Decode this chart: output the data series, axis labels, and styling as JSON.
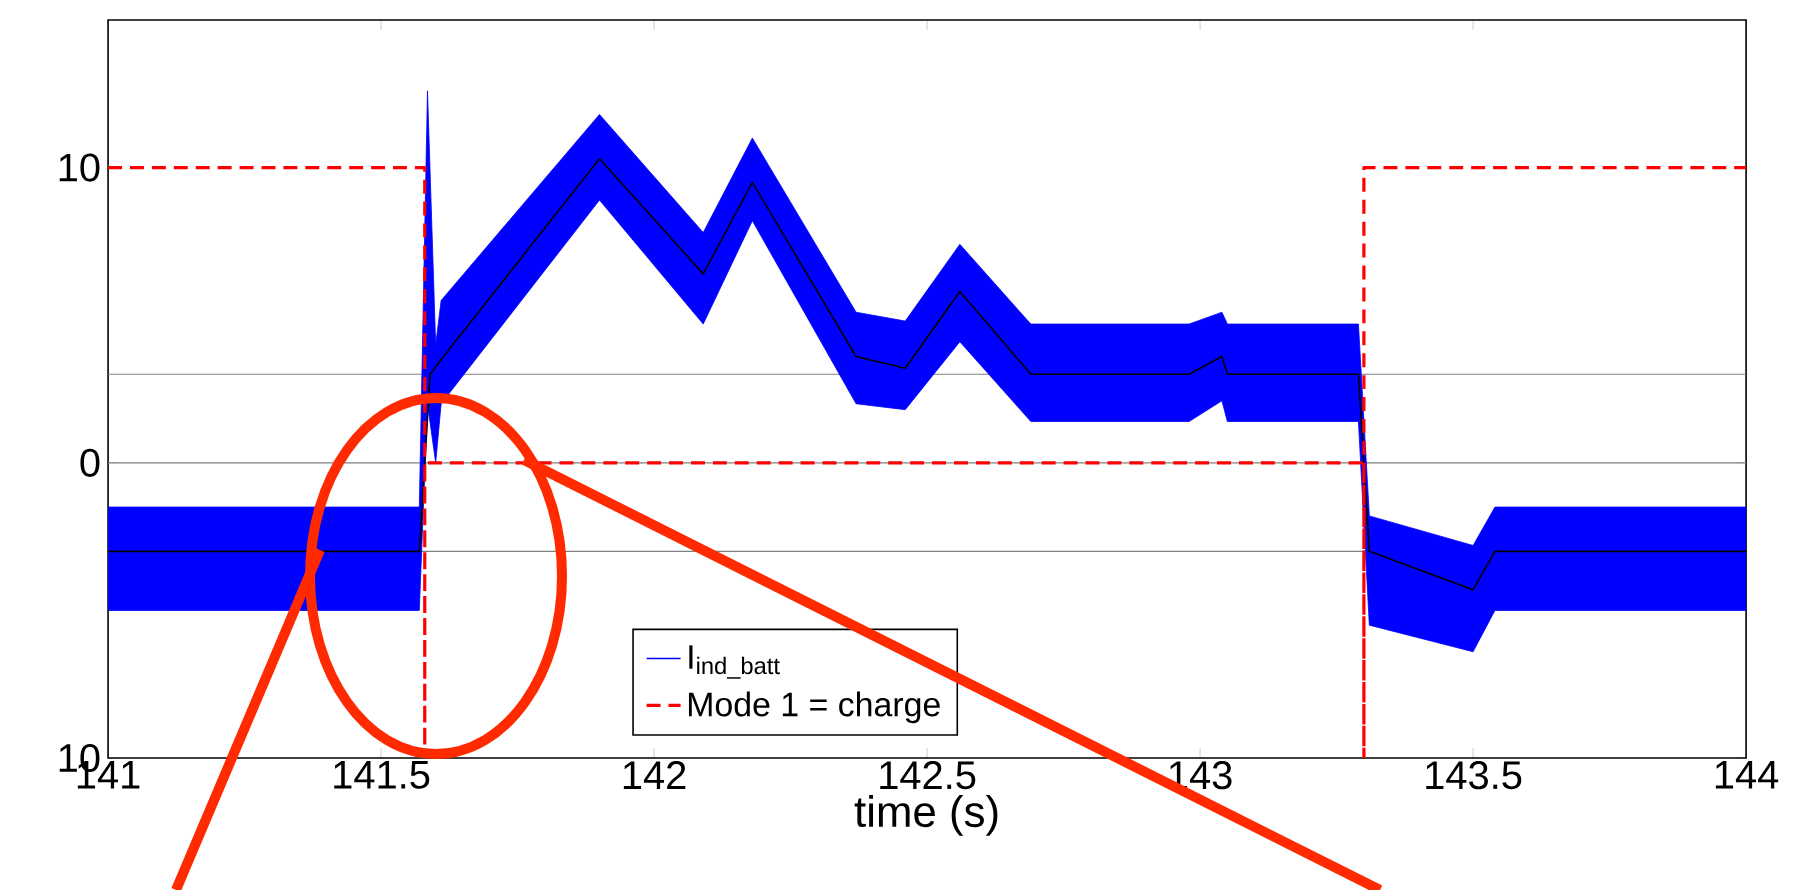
{
  "chart_data": {
    "type": "line",
    "xlabel": "time (s)",
    "xlim": [
      141,
      144
    ],
    "ylim": [
      -10,
      15
    ],
    "xticks": [
      141,
      141.5,
      142,
      142.5,
      143,
      143.5,
      144
    ],
    "yticks": [
      {
        "value": -10,
        "label": "10"
      },
      0,
      10
    ],
    "legend": "bottom",
    "grid": false,
    "marker": "none",
    "series": [
      {
        "name": "I$_{ind_batt}$",
        "color": "#0000ff",
        "type": "line",
        "x": [
          141,
          141.57,
          141.585,
          141.6,
          141.61,
          141.9,
          142.09,
          142.18,
          142.37,
          142.46,
          142.56,
          142.69,
          142.98,
          143.04,
          143.05,
          143.29,
          143.31,
          143.5,
          143.54,
          144
        ],
        "values": [
          null,
          null,
          null,
          null,
          null,
          null,
          null,
          null,
          null,
          null,
          null,
          null,
          null,
          null,
          null,
          null,
          null,
          null,
          null,
          null
        ],
        "lower": [
          -5,
          -5,
          2,
          0,
          2,
          8.9,
          4.7,
          8.2,
          2,
          1.8,
          4.1,
          1.4,
          1.4,
          2.1,
          1.4,
          1.4,
          -5.5,
          -6.4,
          -5,
          -5
        ],
        "upper": [
          -1.5,
          -1.5,
          12.6,
          4,
          5.5,
          11.8,
          7.8,
          11,
          5.1,
          4.8,
          7.4,
          4.7,
          4.7,
          5.1,
          4.7,
          4.7,
          -1.8,
          -2.8,
          -1.5,
          -1.5
        ]
      },
      {
        "color": "#000000",
        "x": [
          141,
          141.57,
          141.59,
          141.61,
          141.9,
          142.09,
          142.18,
          142.37,
          142.46,
          142.56,
          142.69,
          142.98,
          143.04,
          143.05,
          143.29,
          143.31,
          143.5,
          143.54,
          144
        ],
        "values": [
          -3,
          -3,
          3,
          3.5,
          10.3,
          6.4,
          9.5,
          3.6,
          3.2,
          5.8,
          3,
          3,
          3.6,
          3,
          3,
          -3,
          -4.3,
          -3,
          -3
        ]
      },
      {
        "name": "Mode 1 = charge",
        "color": "#ff0000",
        "line_style": "dashed",
        "x": [
          141,
          141.58,
          141.58,
          141.58,
          143.3,
          143.3,
          143.3,
          144
        ],
        "values": [
          10,
          10,
          -10,
          0,
          0,
          -10,
          10,
          10
        ]
      }
    ],
    "ref_lines": [
      {
        "axis": "y",
        "value": 3,
        "color": "#808080"
      },
      {
        "axis": "y",
        "value": 0,
        "color": "#808080"
      },
      {
        "axis": "y",
        "value": -3,
        "color": "#808080"
      }
    ]
  }
}
